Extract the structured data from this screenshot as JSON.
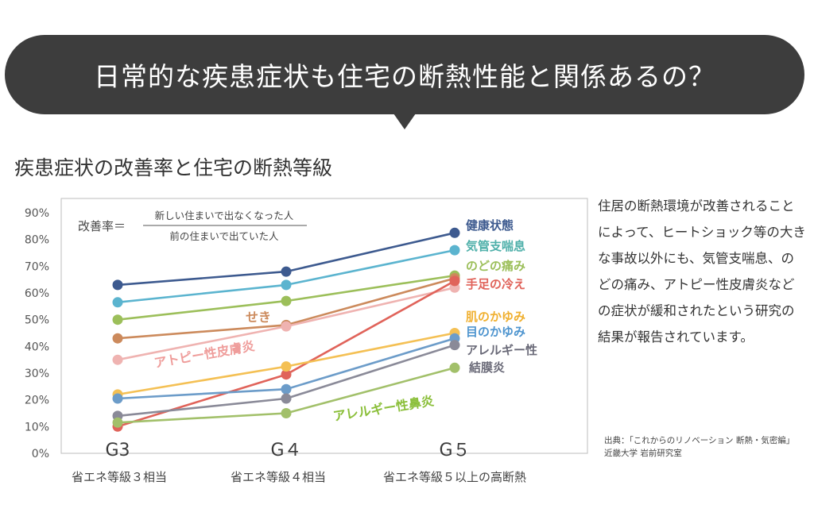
{
  "header": {
    "banner_title": "日常的な疾患症状も住宅の断熱性能と関係あるの？",
    "banner_color": "#3d3d3d"
  },
  "chart_title": "疾患症状の改善率と住宅の断熱等級",
  "chart_data": {
    "type": "line",
    "title": "疾患症状の改善率と住宅の断熱等級",
    "categories": [
      "G3",
      "G４",
      "G５"
    ],
    "category_sublabels": [
      "省エネ等級３相当",
      "省エネ等級４相当",
      "省エネ等級５以上の高断熱"
    ],
    "ylim": [
      0,
      90
    ],
    "yticks": [
      "0%",
      "10%",
      "20%",
      "30%",
      "40%",
      "50%",
      "60%",
      "70%",
      "80%",
      "90%"
    ],
    "formula": {
      "label": "改善率＝",
      "numerator": "新しい住まいで出なくなった人",
      "denominator": "前の住まいで出ていた人"
    },
    "series": [
      {
        "name": "健康状態",
        "values": [
          63,
          68,
          82.5
        ],
        "color": "#3d5a8f"
      },
      {
        "name": "気管支喘息",
        "values": [
          56.5,
          63,
          76
        ],
        "color": "#5bb4cf"
      },
      {
        "name": "のどの痛み",
        "values": [
          50,
          57,
          66.5
        ],
        "color": "#9cbf5a"
      },
      {
        "name": "せき",
        "values": [
          43,
          48,
          65.5
        ],
        "color": "#cc8a5c"
      },
      {
        "name": "アトピー性皮膚炎",
        "values": [
          35,
          47.5,
          62
        ],
        "color": "#efb3b1"
      },
      {
        "name": "手足の冷え",
        "values": [
          10,
          29.5,
          64.5
        ],
        "color": "#e0635a"
      },
      {
        "name": "肌のかゆみ",
        "values": [
          22,
          32.5,
          45
        ],
        "color": "#f4c054"
      },
      {
        "name": "目のかゆみ",
        "values": [
          20.5,
          24,
          43
        ],
        "color": "#6c9cc9"
      },
      {
        "name": "アレルギー性結膜炎",
        "values": [
          14,
          20.5,
          40.5
        ],
        "color": "#8a8a98"
      },
      {
        "name": "アレルギー性鼻炎",
        "values": [
          11.5,
          15,
          32
        ],
        "color": "#a2c06a"
      }
    ],
    "annotations": [
      {
        "text": "健康状態",
        "color": "#3d5a8f"
      },
      {
        "text": "気管支喘息",
        "color": "#4fb0aa"
      },
      {
        "text": "のどの痛み",
        "color": "#9cbf5a"
      },
      {
        "text": "手足の冷え",
        "color": "#e0635a"
      },
      {
        "text": "肌のかゆみ",
        "color": "#f0b030"
      },
      {
        "text": "目のかゆみ",
        "color": "#4f95cf"
      },
      {
        "text": "アレルギー性",
        "color": "#6a6a78"
      },
      {
        "text": "結膜炎",
        "color": "#6a6a78"
      },
      {
        "text": "せき",
        "color": "#cc8a5c"
      },
      {
        "text": "アトピー性皮膚炎",
        "color": "#ef9d9b"
      },
      {
        "text": "アレルギー性鼻炎",
        "color": "#8bbf3a"
      }
    ]
  },
  "side_text": "住居の断熱環境が改善されることによって、ヒートショック等の大きな事故以外にも、気管支喘息、のどの痛み、アトピー性皮膚炎などの症状が緩和されたという研究の結果が報告されています。",
  "source": {
    "line1": "出典：「これからのリノベーション 断熱・気密編」",
    "line2": "近畿大学 岩前研究室"
  }
}
